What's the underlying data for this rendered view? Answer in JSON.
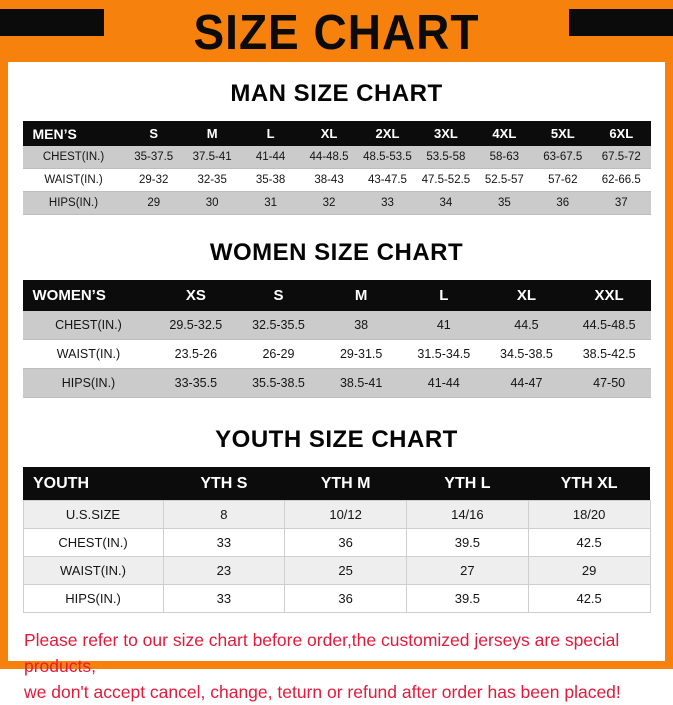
{
  "banner": {
    "title": "SIZE CHART",
    "bg_color": "#F6820D",
    "corner_bar_color": "#0B0B0B"
  },
  "sections": [
    {
      "heading": "MAN SIZE CHART",
      "table": {
        "header": [
          "MEN’S",
          "S",
          "M",
          "L",
          "XL",
          "2XL",
          "3XL",
          "4XL",
          "5XL",
          "6XL"
        ],
        "rows": [
          {
            "label": "CHEST(IN.)",
            "values": [
              "35-37.5",
              "37.5-41",
              "41-44",
              "44-48.5",
              "48.5-53.5",
              "53.5-58",
              "58-63",
              "63-67.5",
              "67.5-72"
            ]
          },
          {
            "label": "WAIST(IN.)",
            "values": [
              "29-32",
              "32-35",
              "35-38",
              "38-43",
              "43-47.5",
              "47.5-52.5",
              "52.5-57",
              "57-62",
              "62-66.5"
            ]
          },
          {
            "label": "HIPS(IN.)",
            "values": [
              "29",
              "30",
              "31",
              "32",
              "33",
              "34",
              "35",
              "36",
              "37"
            ]
          }
        ]
      }
    },
    {
      "heading": "WOMEN SIZE CHART",
      "table": {
        "header": [
          "WOMEN’S",
          "XS",
          "S",
          "M",
          "L",
          "XL",
          "XXL"
        ],
        "rows": [
          {
            "label": "CHEST(IN.)",
            "values": [
              "29.5-32.5",
              "32.5-35.5",
              "38",
              "41",
              "44.5",
              "44.5-48.5"
            ]
          },
          {
            "label": "WAIST(IN.)",
            "values": [
              "23.5-26",
              "26-29",
              "29-31.5",
              "31.5-34.5",
              "34.5-38.5",
              "38.5-42.5"
            ]
          },
          {
            "label": "HIPS(IN.)",
            "values": [
              "33-35.5",
              "35.5-38.5",
              "38.5-41",
              "41-44",
              "44-47",
              "47-50"
            ]
          }
        ]
      }
    },
    {
      "heading": "YOUTH SIZE CHART",
      "table": {
        "header": [
          "YOUTH",
          "YTH S",
          "YTH M",
          "YTH L",
          "YTH XL"
        ],
        "rows": [
          {
            "label": "U.S.SIZE",
            "values": [
              "8",
              "10/12",
              "14/16",
              "18/20"
            ]
          },
          {
            "label": "CHEST(IN.)",
            "values": [
              "33",
              "36",
              "39.5",
              "42.5"
            ]
          },
          {
            "label": "WAIST(IN.)",
            "values": [
              "23",
              "25",
              "27",
              "29"
            ]
          },
          {
            "label": "HIPS(IN.)",
            "values": [
              "33",
              "36",
              "39.5",
              "42.5"
            ]
          }
        ]
      }
    }
  ],
  "footer": {
    "line1": "Please refer to our size chart before order,the customized jerseys are special products,",
    "line2": "we don't accept cancel, change, teturn or refund after order has been placed!",
    "text_color": "#E21A3C"
  }
}
